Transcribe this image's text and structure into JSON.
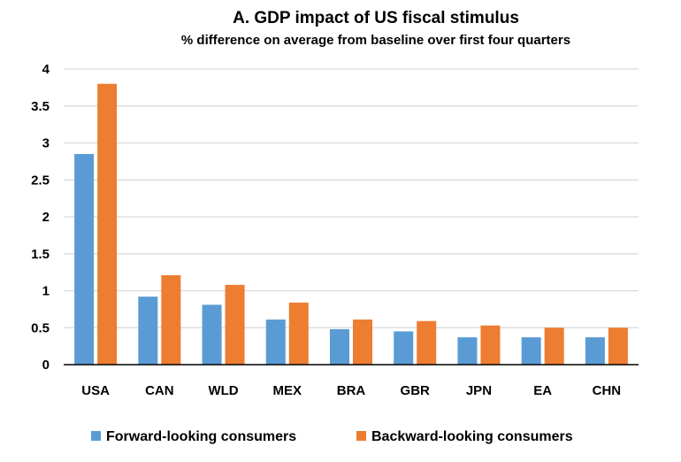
{
  "chart_data": {
    "type": "bar",
    "title": "A. GDP impact of US fiscal stimulus",
    "subtitle": "% difference on average from baseline over first four quarters",
    "categories": [
      "USA",
      "CAN",
      "WLD",
      "MEX",
      "BRA",
      "GBR",
      "JPN",
      "EA",
      "CHN"
    ],
    "series": [
      {
        "name": "Forward-looking consumers",
        "color": "#5B9BD5",
        "values": [
          2.85,
          0.92,
          0.81,
          0.61,
          0.48,
          0.45,
          0.37,
          0.37,
          0.37
        ]
      },
      {
        "name": "Backward-looking consumers",
        "color": "#ED7D31",
        "values": [
          3.8,
          1.21,
          1.08,
          0.84,
          0.61,
          0.59,
          0.53,
          0.5,
          0.5
        ]
      }
    ],
    "yticks": [
      "0",
      "0.5",
      "1",
      "1.5",
      "2",
      "2.5",
      "3",
      "3.5",
      "4"
    ],
    "ylim": [
      0,
      4
    ],
    "grid": true,
    "legend_position": "bottom"
  }
}
